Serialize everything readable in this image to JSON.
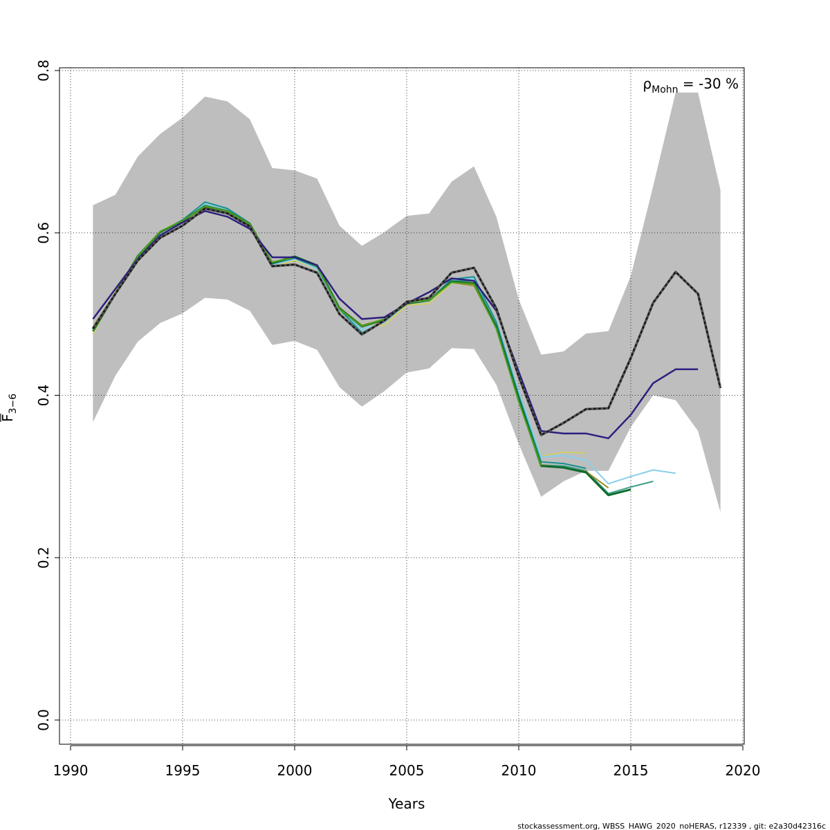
{
  "chart_data": {
    "type": "line",
    "xlabel": "Years",
    "ylabel_main": "F",
    "ylabel_sub": "3−6",
    "ylim": [
      0,
      0.8
    ],
    "xlim": [
      1990,
      2020
    ],
    "x_ticks": [
      1990,
      1995,
      2000,
      2005,
      2010,
      2015,
      2020
    ],
    "y_ticks": [
      0.0,
      0.2,
      0.4,
      0.6,
      0.8
    ],
    "x_tick_labels": [
      "1990",
      "1995",
      "2000",
      "2005",
      "2010",
      "2015",
      "2020"
    ],
    "y_tick_labels": [
      "0.0",
      "0.2",
      "0.4",
      "0.6",
      "0.8"
    ],
    "grid": true,
    "annotation": {
      "rho": "ρ",
      "sub": "Mohn",
      "rest": " = -30 %"
    },
    "footer": "stockassessment.org, WBSS_HAWG_2020_noHERAS, r12339 , git: e2a30d42316c",
    "band": {
      "color": "#bebebe",
      "x": [
        1991,
        1992,
        1993,
        1994,
        1995,
        1996,
        1997,
        1998,
        1999,
        2000,
        2001,
        2002,
        2003,
        2004,
        2005,
        2006,
        2007,
        2008,
        2009,
        2010,
        2011,
        2012,
        2013,
        2014,
        2015,
        2016,
        2017,
        2018,
        2019
      ],
      "upper": [
        0.634,
        0.647,
        0.694,
        0.722,
        0.742,
        0.768,
        0.762,
        0.74,
        0.68,
        0.677,
        0.667,
        0.609,
        0.584,
        0.601,
        0.621,
        0.624,
        0.663,
        0.682,
        0.62,
        0.518,
        0.45,
        0.454,
        0.476,
        0.479,
        0.547,
        0.658,
        0.773,
        0.773,
        0.653
      ],
      "lower": [
        0.367,
        0.424,
        0.466,
        0.489,
        0.501,
        0.52,
        0.518,
        0.504,
        0.462,
        0.467,
        0.456,
        0.41,
        0.386,
        0.405,
        0.428,
        0.433,
        0.458,
        0.457,
        0.413,
        0.34,
        0.275,
        0.294,
        0.307,
        0.307,
        0.361,
        0.4,
        0.394,
        0.356,
        0.256
      ]
    },
    "series": [
      {
        "color": "#cfcf6a",
        "width": 2,
        "dashed": false,
        "x": [
          1991,
          1992,
          1993,
          1994,
          1995,
          1996,
          1997,
          1998,
          1999,
          2000,
          2001,
          2002,
          2003,
          2004,
          2005,
          2006,
          2007,
          2008,
          2009,
          2010,
          2011,
          2012,
          2013
        ],
        "values": [
          0.475,
          0.528,
          0.572,
          0.602,
          0.616,
          0.636,
          0.626,
          0.611,
          0.558,
          0.566,
          0.556,
          0.503,
          0.487,
          0.486,
          0.511,
          0.513,
          0.538,
          0.541,
          0.489,
          0.402,
          0.325,
          0.33,
          0.329
        ]
      },
      {
        "color": "#88cfea",
        "width": 2,
        "dashed": false,
        "x": [
          1991,
          1992,
          1993,
          1994,
          1995,
          1996,
          1997,
          1998,
          1999,
          2000,
          2001,
          2002,
          2003,
          2004,
          2005,
          2006,
          2007,
          2008,
          2009,
          2010,
          2011,
          2012,
          2013,
          2014,
          2015,
          2016,
          2017
        ],
        "values": [
          0.482,
          0.526,
          0.572,
          0.6,
          0.616,
          0.636,
          0.628,
          0.61,
          0.561,
          0.568,
          0.556,
          0.505,
          0.481,
          0.49,
          0.513,
          0.516,
          0.542,
          0.544,
          0.491,
          0.404,
          0.324,
          0.326,
          0.32,
          0.291,
          0.3,
          0.308,
          0.304
        ]
      },
      {
        "color": "#3a9f8a",
        "width": 2,
        "dashed": false,
        "x": [
          1991,
          1992,
          1993,
          1994,
          1995,
          1996,
          1997,
          1998,
          1999,
          2000,
          2001,
          2002,
          2003,
          2004,
          2005,
          2006,
          2007,
          2008,
          2009,
          2010,
          2011,
          2012,
          2013,
          2014,
          2015,
          2016
        ],
        "values": [
          0.483,
          0.526,
          0.572,
          0.601,
          0.615,
          0.634,
          0.627,
          0.611,
          0.563,
          0.569,
          0.558,
          0.506,
          0.484,
          0.493,
          0.514,
          0.517,
          0.541,
          0.541,
          0.486,
          0.397,
          0.314,
          0.313,
          0.307,
          0.279,
          0.287,
          0.294
        ]
      },
      {
        "color": "#a08c20",
        "width": 2,
        "dashed": false,
        "x": [
          1991,
          1992,
          1993,
          1994,
          1995,
          1996,
          1997,
          1998,
          1999,
          2000,
          2001,
          2002,
          2003,
          2004,
          2005,
          2006,
          2007,
          2008,
          2009,
          2010,
          2011,
          2012,
          2013,
          2014
        ],
        "values": [
          0.484,
          0.526,
          0.572,
          0.602,
          0.614,
          0.632,
          0.626,
          0.61,
          0.564,
          0.57,
          0.559,
          0.508,
          0.486,
          0.494,
          0.514,
          0.517,
          0.539,
          0.535,
          0.483,
          0.393,
          0.314,
          0.311,
          0.306,
          0.286
        ]
      },
      {
        "color": "#1a9090",
        "width": 2,
        "dashed": false,
        "x": [
          1991,
          1992,
          1993,
          1994,
          1995,
          1996,
          1997,
          1998,
          1999,
          2000,
          2001,
          2002,
          2003,
          2004,
          2005,
          2006,
          2007,
          2008,
          2009,
          2010,
          2011,
          2012,
          2013
        ],
        "values": [
          0.481,
          0.525,
          0.572,
          0.601,
          0.616,
          0.638,
          0.63,
          0.612,
          0.562,
          0.569,
          0.558,
          0.506,
          0.477,
          0.491,
          0.513,
          0.517,
          0.543,
          0.546,
          0.49,
          0.4,
          0.318,
          0.316,
          0.31
        ]
      },
      {
        "color": "#0e6b2c",
        "width": 3,
        "dashed": false,
        "x": [
          1991,
          1992,
          1993,
          1994,
          1995,
          1996,
          1997,
          1998,
          1999,
          2000,
          2001,
          2002,
          2003,
          2004,
          2005,
          2006,
          2007,
          2008,
          2009,
          2010,
          2011,
          2012,
          2013,
          2014,
          2015
        ],
        "values": [
          0.479,
          0.525,
          0.571,
          0.601,
          0.615,
          0.633,
          0.627,
          0.611,
          0.563,
          0.571,
          0.56,
          0.507,
          0.485,
          0.493,
          0.513,
          0.517,
          0.54,
          0.538,
          0.484,
          0.395,
          0.313,
          0.311,
          0.305,
          0.277,
          0.284
        ]
      },
      {
        "color": "#4fa020",
        "width": 2,
        "dashed": false,
        "x": [
          1991,
          1992,
          1993,
          1994,
          1995,
          1996,
          1997,
          1998,
          1999,
          2000,
          2001,
          2002,
          2003,
          2004,
          2005,
          2006,
          2007,
          2008,
          2009,
          2010,
          2011
        ],
        "values": [
          0.48,
          0.526,
          0.571,
          0.602,
          0.615,
          0.633,
          0.627,
          0.611,
          0.564,
          0.57,
          0.559,
          0.506,
          0.485,
          0.494,
          0.514,
          0.517,
          0.539,
          0.537,
          0.482,
          0.392,
          0.313
        ]
      },
      {
        "color": "#2b1f7e",
        "width": 2.5,
        "dashed": false,
        "x": [
          1991,
          1992,
          1993,
          1994,
          1995,
          1996,
          1997,
          1998,
          1999,
          2000,
          2001,
          2002,
          2003,
          2004,
          2005,
          2006,
          2007,
          2008,
          2009,
          2010,
          2011,
          2012,
          2013,
          2014,
          2015,
          2016,
          2017,
          2018
        ],
        "values": [
          0.494,
          0.531,
          0.568,
          0.597,
          0.613,
          0.627,
          0.62,
          0.605,
          0.57,
          0.57,
          0.56,
          0.519,
          0.494,
          0.496,
          0.513,
          0.527,
          0.544,
          0.541,
          0.504,
          0.429,
          0.356,
          0.353,
          0.353,
          0.347,
          0.376,
          0.415,
          0.432,
          0.432
        ]
      },
      {
        "color": "#1a1a1a",
        "width": 2.5,
        "dashed": true,
        "x": [
          1991,
          1992,
          1993,
          1994,
          1995,
          1996,
          1997,
          1998,
          1999,
          2000,
          2001,
          2002,
          2003,
          2004,
          2005,
          2006,
          2007,
          2008,
          2009,
          2010,
          2011,
          2012,
          2013,
          2014,
          2015,
          2016,
          2017,
          2018,
          2019
        ],
        "values": [
          0.482,
          0.525,
          0.566,
          0.594,
          0.609,
          0.63,
          0.624,
          0.608,
          0.559,
          0.561,
          0.551,
          0.5,
          0.475,
          0.492,
          0.515,
          0.52,
          0.551,
          0.557,
          0.507,
          0.423,
          0.351,
          0.366,
          0.383,
          0.384,
          0.446,
          0.514,
          0.552,
          0.525,
          0.409
        ]
      }
    ]
  }
}
